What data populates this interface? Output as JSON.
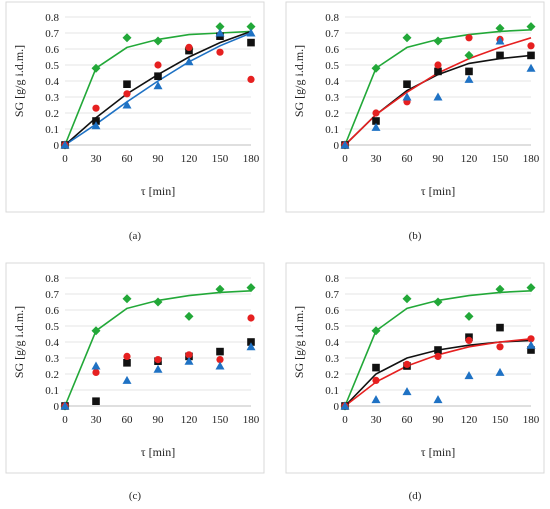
{
  "chart_data": [
    {
      "type": "scatter",
      "panel_label": "(a)",
      "ylabel": "SG [g/g i.d.m.]",
      "xlabel": "τ [min]",
      "xlim": [
        0,
        180
      ],
      "ylim": [
        0,
        0.8
      ],
      "x_ticks": [
        "0",
        "30",
        "60",
        "90",
        "120",
        "150",
        "180"
      ],
      "y_ticks": [
        "0",
        "0.1",
        "0.2",
        "0.3",
        "0.4",
        "0.5",
        "0.6",
        "0.7",
        "0.8"
      ],
      "series": [
        {
          "marker": "diamond",
          "color": "#22a838",
          "x": [
            0,
            30,
            60,
            90,
            120,
            150,
            180
          ],
          "values": [
            0,
            0.48,
            0.67,
            0.65,
            0.6,
            0.74,
            0.74
          ],
          "fit_color": "#22a838",
          "fit": [
            0,
            0.48,
            0.61,
            0.66,
            0.69,
            0.7,
            0.71
          ]
        },
        {
          "marker": "square",
          "color": "#111111",
          "x": [
            0,
            30,
            60,
            90,
            120,
            150,
            180
          ],
          "values": [
            0,
            0.15,
            0.38,
            0.43,
            0.59,
            0.68,
            0.64
          ],
          "fit_color": "#111111",
          "fit": [
            0,
            0.17,
            0.32,
            0.44,
            0.55,
            0.64,
            0.71
          ]
        },
        {
          "marker": "circle",
          "color": "#e62020",
          "x": [
            0,
            30,
            60,
            90,
            120,
            150,
            180
          ],
          "values": [
            0,
            0.23,
            0.32,
            0.5,
            0.61,
            0.58,
            0.41
          ]
        },
        {
          "marker": "triangle",
          "color": "#1f72c4",
          "x": [
            0,
            30,
            60,
            90,
            120,
            150,
            180
          ],
          "values": [
            0,
            0.12,
            0.25,
            0.37,
            0.52,
            0.7,
            0.7
          ],
          "fit_color": "#1f72c4",
          "fit": [
            0,
            0.13,
            0.27,
            0.4,
            0.52,
            0.62,
            0.7
          ]
        }
      ]
    },
    {
      "type": "scatter",
      "panel_label": "(b)",
      "ylabel": "SG [g/g i.d.m.]",
      "xlabel": "τ [min]",
      "xlim": [
        0,
        180
      ],
      "ylim": [
        0,
        0.8
      ],
      "x_ticks": [
        "0",
        "30",
        "60",
        "90",
        "120",
        "150",
        "180"
      ],
      "y_ticks": [
        "0",
        "0.1",
        "0.2",
        "0.3",
        "0.4",
        "0.5",
        "0.6",
        "0.7",
        "0.8"
      ],
      "series": [
        {
          "marker": "diamond",
          "color": "#22a838",
          "x": [
            0,
            30,
            60,
            90,
            120,
            150,
            180
          ],
          "values": [
            0,
            0.48,
            0.67,
            0.65,
            0.56,
            0.73,
            0.74
          ],
          "fit_color": "#22a838",
          "fit": [
            0,
            0.48,
            0.61,
            0.66,
            0.69,
            0.71,
            0.72
          ]
        },
        {
          "marker": "square",
          "color": "#111111",
          "x": [
            0,
            30,
            60,
            90,
            120,
            150,
            180
          ],
          "values": [
            0,
            0.15,
            0.38,
            0.46,
            0.46,
            0.56,
            0.56
          ],
          "fit_color": "#111111",
          "fit": [
            0,
            0.19,
            0.34,
            0.44,
            0.51,
            0.54,
            0.56
          ]
        },
        {
          "marker": "circle",
          "color": "#e62020",
          "x": [
            0,
            30,
            60,
            90,
            120,
            150,
            180
          ],
          "values": [
            0,
            0.2,
            0.27,
            0.5,
            0.67,
            0.66,
            0.62
          ],
          "fit_color": "#e62020",
          "fit": [
            0,
            0.19,
            0.33,
            0.45,
            0.54,
            0.61,
            0.67
          ]
        },
        {
          "marker": "triangle",
          "color": "#1f72c4",
          "x": [
            0,
            30,
            60,
            90,
            120,
            150,
            180
          ],
          "values": [
            0,
            0.11,
            0.3,
            0.3,
            0.41,
            0.65,
            0.48
          ]
        }
      ]
    },
    {
      "type": "scatter",
      "panel_label": "(c)",
      "ylabel": "SG [g/g i.d.m.]",
      "xlabel": "τ [min]",
      "xlim": [
        0,
        180
      ],
      "ylim": [
        0,
        0.8
      ],
      "x_ticks": [
        "0",
        "30",
        "60",
        "90",
        "120",
        "150",
        "180"
      ],
      "y_ticks": [
        "0",
        "0.1",
        "0.2",
        "0.3",
        "0.4",
        "0.5",
        "0.6",
        "0.7",
        "0.8"
      ],
      "series": [
        {
          "marker": "diamond",
          "color": "#22a838",
          "x": [
            0,
            30,
            60,
            90,
            120,
            150,
            180
          ],
          "values": [
            0,
            0.47,
            0.67,
            0.65,
            0.56,
            0.73,
            0.74
          ],
          "fit_color": "#22a838",
          "fit": [
            0,
            0.47,
            0.61,
            0.66,
            0.69,
            0.71,
            0.72
          ]
        },
        {
          "marker": "square",
          "color": "#111111",
          "x": [
            0,
            30,
            60,
            90,
            120,
            150,
            180
          ],
          "values": [
            0,
            0.03,
            0.27,
            0.28,
            0.31,
            0.34,
            0.4
          ]
        },
        {
          "marker": "circle",
          "color": "#e62020",
          "x": [
            0,
            30,
            60,
            90,
            120,
            150,
            180
          ],
          "values": [
            0,
            0.21,
            0.31,
            0.29,
            0.32,
            0.29,
            0.55
          ]
        },
        {
          "marker": "triangle",
          "color": "#1f72c4",
          "x": [
            0,
            30,
            60,
            90,
            120,
            150,
            180
          ],
          "values": [
            0,
            0.25,
            0.16,
            0.23,
            0.28,
            0.25,
            0.37
          ]
        }
      ]
    },
    {
      "type": "scatter",
      "panel_label": "(d)",
      "ylabel": "SG [g/g i.d.m.]",
      "xlabel": "τ [min]",
      "xlim": [
        0,
        180
      ],
      "ylim": [
        0,
        0.8
      ],
      "x_ticks": [
        "0",
        "30",
        "60",
        "90",
        "120",
        "150",
        "180"
      ],
      "y_ticks": [
        "0",
        "0.1",
        "0.2",
        "0.3",
        "0.4",
        "0.5",
        "0.6",
        "0.7",
        "0.8"
      ],
      "series": [
        {
          "marker": "diamond",
          "color": "#22a838",
          "x": [
            0,
            30,
            60,
            90,
            120,
            150,
            180
          ],
          "values": [
            0,
            0.47,
            0.67,
            0.65,
            0.56,
            0.73,
            0.74
          ],
          "fit_color": "#22a838",
          "fit": [
            0,
            0.47,
            0.61,
            0.66,
            0.69,
            0.71,
            0.72
          ]
        },
        {
          "marker": "square",
          "color": "#111111",
          "x": [
            0,
            30,
            60,
            90,
            120,
            150,
            180
          ],
          "values": [
            0,
            0.24,
            0.25,
            0.35,
            0.43,
            0.49,
            0.35
          ],
          "fit_color": "#111111",
          "fit": [
            0,
            0.2,
            0.3,
            0.35,
            0.38,
            0.4,
            0.41
          ]
        },
        {
          "marker": "circle",
          "color": "#e62020",
          "x": [
            0,
            30,
            60,
            90,
            120,
            150,
            180
          ],
          "values": [
            0,
            0.16,
            0.26,
            0.31,
            0.41,
            0.37,
            0.42
          ],
          "fit_color": "#e62020",
          "fit": [
            0,
            0.15,
            0.25,
            0.32,
            0.37,
            0.4,
            0.42
          ]
        },
        {
          "marker": "triangle",
          "color": "#1f72c4",
          "x": [
            0,
            30,
            60,
            90,
            120,
            150,
            180
          ],
          "values": [
            0,
            0.04,
            0.09,
            0.04,
            0.19,
            0.21,
            0.38
          ]
        }
      ]
    }
  ]
}
